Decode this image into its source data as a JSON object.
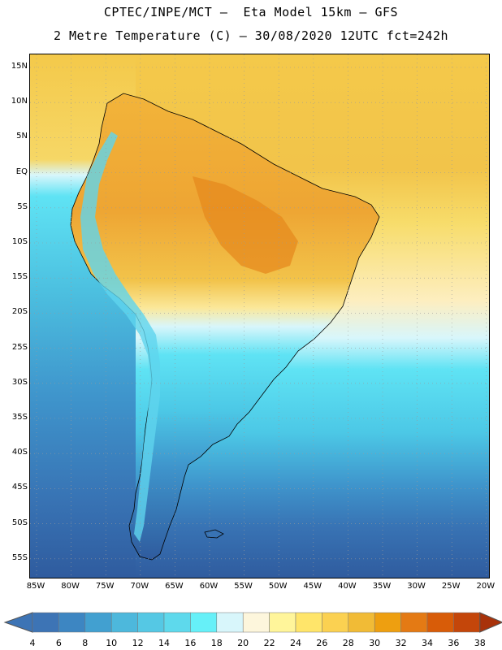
{
  "header": {
    "line1": "CPTEC/INPE/MCT –  Eta Model 15km – GFS",
    "line2": "2 Metre Temperature (C) – 30/08/2020 12UTC fct=242h"
  },
  "map": {
    "lat_labels": [
      "15N",
      "10N",
      "5N",
      "EQ",
      "5S",
      "10S",
      "15S",
      "20S",
      "25S",
      "30S",
      "35S",
      "40S",
      "45S",
      "50S",
      "55S"
    ],
    "lon_labels": [
      "85W",
      "80W",
      "75W",
      "70W",
      "65W",
      "60W",
      "55W",
      "50W",
      "45W",
      "40W",
      "35W",
      "30W",
      "25W",
      "20W"
    ]
  },
  "colorbar": {
    "labels": [
      "4",
      "6",
      "8",
      "10",
      "12",
      "14",
      "16",
      "18",
      "20",
      "22",
      "24",
      "26",
      "28",
      "30",
      "32",
      "34",
      "36",
      "38"
    ],
    "colors": [
      "#3d74b5",
      "#3d86c2",
      "#42a0d0",
      "#4db8dc",
      "#55c8e4",
      "#5ed9ec",
      "#66f0f8",
      "#d8f6fb",
      "#fdf6dc",
      "#fff59a",
      "#ffe56a",
      "#fbd151",
      "#f1bb36",
      "#ee9f10",
      "#e47a14",
      "#d85c08",
      "#c4460a",
      "#a8320a"
    ]
  },
  "legend_colors": {
    "ocean_cold": "#2d5a9e",
    "ocean_mid": "#3f8fcf",
    "cyan": "#4cd3f0",
    "warm": "#f4c34a",
    "hot": "#e07a1c"
  }
}
